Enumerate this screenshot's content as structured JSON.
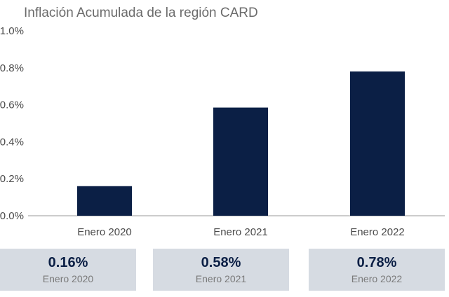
{
  "chart_data": {
    "type": "bar",
    "title": "Inflación Acumulada de la región CARD",
    "categories": [
      "Enero 2020",
      "Enero 2021",
      "Enero 2022"
    ],
    "values": [
      0.16,
      0.585,
      0.78
    ],
    "ylim": [
      0,
      1.0
    ],
    "yticks": [
      "1.0%",
      "0.8%",
      "0.6%",
      "0.4%",
      "0.2%",
      "0.0%"
    ],
    "ytick_values": [
      1.0,
      0.8,
      0.6,
      0.4,
      0.2,
      0.0
    ],
    "bar_color": "#0b1f45",
    "grid": false,
    "legend": "none"
  },
  "summary_cards": [
    {
      "value": "0.16%",
      "label": "Enero 2020"
    },
    {
      "value": "0.58%",
      "label": "Enero 2021"
    },
    {
      "value": "0.78%",
      "label": "Enero 2022"
    }
  ]
}
